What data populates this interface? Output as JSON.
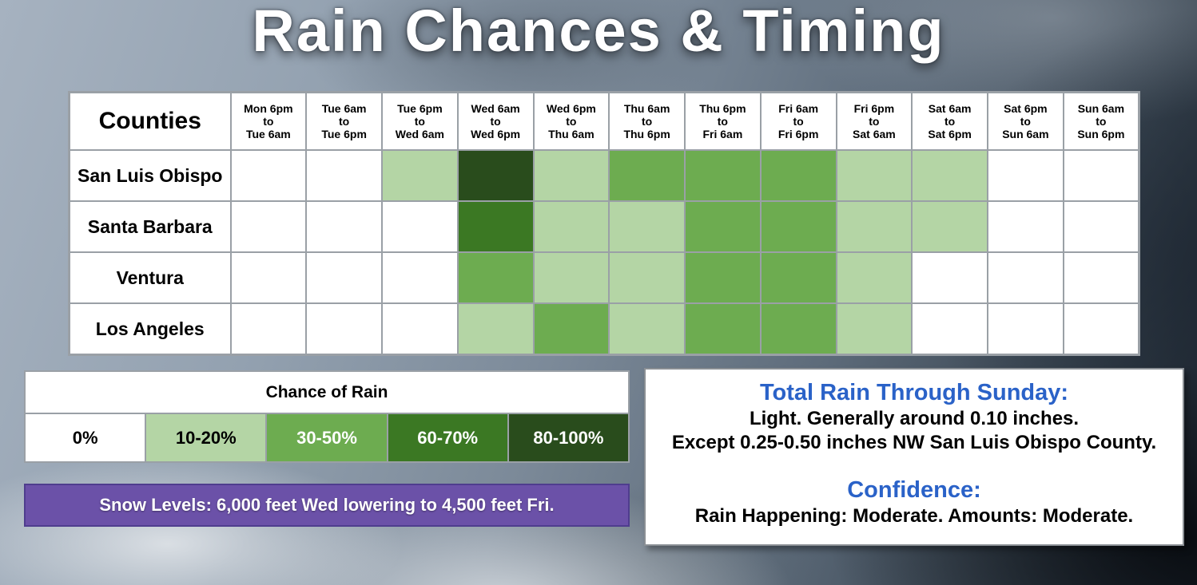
{
  "page": {
    "title": "Rain Chances & Timing"
  },
  "table": {
    "corner_label": "Counties"
  },
  "chart_data": {
    "type": "heatmap",
    "title": "Rain Chances & Timing",
    "x_categories": [
      [
        "Mon 6pm",
        "to",
        "Tue 6am"
      ],
      [
        "Tue 6am",
        "to",
        "Tue 6pm"
      ],
      [
        "Tue 6pm",
        "to",
        "Wed 6am"
      ],
      [
        "Wed 6am",
        "to",
        "Wed 6pm"
      ],
      [
        "Wed 6pm",
        "to",
        "Thu 6am"
      ],
      [
        "Thu 6am",
        "to",
        "Thu 6pm"
      ],
      [
        "Thu 6pm",
        "to",
        "Fri 6am"
      ],
      [
        "Fri 6am",
        "to",
        "Fri 6pm"
      ],
      [
        "Fri 6pm",
        "to",
        "Sat 6am"
      ],
      [
        "Sat 6am",
        "to",
        "Sat 6pm"
      ],
      [
        "Sat 6pm",
        "to",
        "Sun 6am"
      ],
      [
        "Sun 6am",
        "to",
        "Sun 6pm"
      ]
    ],
    "y_categories": [
      "San Luis Obispo",
      "Santa Barbara",
      "Ventura",
      "Los Angeles"
    ],
    "values": [
      [
        "0%",
        "0%",
        "10-20%",
        "80-100%",
        "10-20%",
        "30-50%",
        "30-50%",
        "30-50%",
        "10-20%",
        "10-20%",
        "0%",
        "0%"
      ],
      [
        "0%",
        "0%",
        "0%",
        "60-70%",
        "10-20%",
        "10-20%",
        "30-50%",
        "30-50%",
        "10-20%",
        "10-20%",
        "0%",
        "0%"
      ],
      [
        "0%",
        "0%",
        "0%",
        "30-50%",
        "10-20%",
        "10-20%",
        "30-50%",
        "30-50%",
        "10-20%",
        "0%",
        "0%",
        "0%"
      ],
      [
        "0%",
        "0%",
        "0%",
        "10-20%",
        "30-50%",
        "10-20%",
        "30-50%",
        "30-50%",
        "10-20%",
        "0%",
        "0%",
        "0%"
      ]
    ],
    "legend_title": "Chance of Rain",
    "legend_position": "bottom-left",
    "bins": [
      "0%",
      "10-20%",
      "30-50%",
      "60-70%",
      "80-100%"
    ],
    "bin_colors": [
      "#ffffff",
      "#b4d5a5",
      "#6dac50",
      "#3b7823",
      "#294c1c"
    ],
    "bin_text_colors": [
      "#000000",
      "#000000",
      "#ffffff",
      "#ffffff",
      "#ffffff"
    ],
    "grid_color": "#9aa0a6"
  },
  "snow_bar": {
    "text": "Snow Levels: 6,000 feet Wed lowering to 4,500 feet Fri.",
    "background": "#6b51a8"
  },
  "summary": {
    "rain_heading": "Total Rain Through Sunday:",
    "rain_line1": "Light. Generally around 0.10 inches.",
    "rain_line2": "Except 0.25-0.50 inches NW San Luis Obispo County.",
    "confidence_heading": "Confidence:",
    "confidence_line": "Rain Happening: Moderate. Amounts: Moderate.",
    "heading_color": "#2a62c8"
  }
}
